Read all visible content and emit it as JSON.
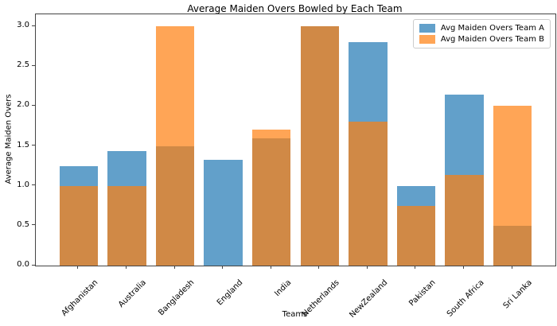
{
  "chart_data": {
    "type": "bar",
    "title": "Average Maiden Overs Bowled by Each Team",
    "xlabel": "Teams",
    "ylabel": "Average Maiden Overs",
    "categories": [
      "Afghanistan",
      "Australia",
      "Bangladesh",
      "England",
      "India",
      "Netherlands",
      "NewZealand",
      "Pakistan",
      "South Africa",
      "Sri Lanka"
    ],
    "series": [
      {
        "name": "Avg Maiden Overs Team A",
        "color": "#1f77b4",
        "alpha": 0.7,
        "values": [
          1.25,
          1.44,
          1.5,
          1.33,
          1.6,
          3.0,
          2.8,
          1.0,
          2.14,
          0.5
        ]
      },
      {
        "name": "Avg Maiden Overs Team B",
        "color": "#ff7f0e",
        "alpha": 0.7,
        "values": [
          1.0,
          1.0,
          3.0,
          0.0,
          1.7,
          3.0,
          1.8,
          0.75,
          1.14,
          2.0
        ]
      }
    ],
    "bar_mode": "overlay",
    "bar_width": 0.8,
    "ylim": [
      0,
      3.15
    ],
    "yticks": [
      0,
      0.5,
      1,
      1.5,
      2,
      2.5,
      3
    ],
    "xtick_rotation": 45,
    "grid": false,
    "legend_position": "upper right"
  }
}
